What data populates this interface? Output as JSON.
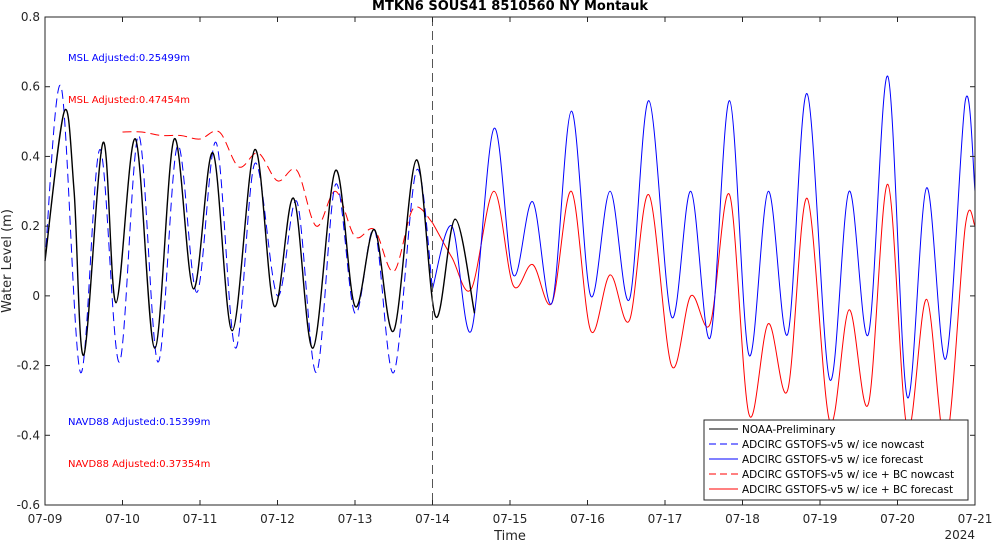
{
  "chart_data": {
    "type": "line",
    "title": "MTKN6 SOUS41 8510560 NY Montauk",
    "xlabel": "Time",
    "ylabel": "Water Level (m)",
    "x_range_days": [
      "2024-07-09",
      "2024-07-21"
    ],
    "x_ticks": [
      "07-09",
      "07-10",
      "07-11",
      "07-12",
      "07-13",
      "07-14",
      "07-15",
      "07-16",
      "07-17",
      "07-18",
      "07-19",
      "07-20",
      "07-21"
    ],
    "x_year_label": "2024",
    "ylim": [
      -0.6,
      0.8
    ],
    "y_ticks": [
      "-0.6",
      "-0.4",
      "-0.2",
      "0",
      "0.2",
      "0.4",
      "0.6",
      "0.8"
    ],
    "nowcast_forecast_boundary": "2024-07-14",
    "grid": false,
    "legend_position": "bottom-right",
    "annotations": [
      {
        "text": "MSL Adjusted:0.25499m",
        "color": "#0000ff"
      },
      {
        "text": "MSL Adjusted:0.47454m",
        "color": "#ff0000"
      },
      {
        "text": "NAVD88 Adjusted:0.15399m",
        "color": "#0000ff"
      },
      {
        "text": "NAVD88 Adjusted:0.37354m",
        "color": "#ff0000"
      }
    ],
    "series": [
      {
        "name": "NOAA-Preliminary",
        "color": "#000000",
        "style": "solid",
        "x": [
          "07-09 00:00",
          "07-09 06:00",
          "07-09 09:00",
          "07-09 12:00",
          "07-09 18:00",
          "07-09 22:00",
          "07-10 04:00",
          "07-10 10:00",
          "07-10 16:00",
          "07-10 22:00",
          "07-11 04:00",
          "07-11 10:00",
          "07-11 17:00",
          "07-11 23:00",
          "07-12 05:00",
          "07-12 11:00",
          "07-12 18:00",
          "07-13 00:00",
          "07-13 06:00",
          "07-13 12:00",
          "07-13 19:00",
          "07-14 01:00",
          "07-14 07:00",
          "07-14 13:00"
        ],
        "y": [
          0.1,
          0.53,
          0.3,
          -0.17,
          0.44,
          -0.02,
          0.45,
          -0.15,
          0.45,
          0.02,
          0.41,
          -0.1,
          0.42,
          -0.03,
          0.28,
          -0.15,
          0.36,
          -0.03,
          0.19,
          -0.1,
          0.39,
          -0.06,
          0.22,
          -0.05
        ]
      },
      {
        "name": "ADCIRC GSTOFS-v5 w/ ice nowcast",
        "color": "#0000ff",
        "style": "dashed",
        "x": [
          "07-09 00:00",
          "07-09 05:00",
          "07-09 11:00",
          "07-09 17:00",
          "07-09 23:00",
          "07-10 05:00",
          "07-10 11:00",
          "07-10 17:00",
          "07-10 23:00",
          "07-11 05:00",
          "07-11 11:00",
          "07-11 17:00",
          "07-12 00:00",
          "07-12 06:00",
          "07-12 12:00",
          "07-12 18:00",
          "07-13 00:00",
          "07-13 06:00",
          "07-13 12:00",
          "07-13 19:00",
          "07-14 00:00"
        ],
        "y": [
          0.1,
          0.6,
          -0.22,
          0.42,
          -0.19,
          0.46,
          -0.19,
          0.43,
          0.01,
          0.44,
          -0.15,
          0.38,
          0.0,
          0.27,
          -0.22,
          0.32,
          -0.05,
          0.19,
          -0.22,
          0.36,
          0.02
        ]
      },
      {
        "name": "ADCIRC GSTOFS-v5 w/ ice forecast",
        "color": "#0000ff",
        "style": "solid",
        "x": [
          "07-14 00:00",
          "07-14 06:00",
          "07-14 12:00",
          "07-14 19:00",
          "07-15 01:00",
          "07-15 07:00",
          "07-15 13:00",
          "07-15 19:00",
          "07-16 01:00",
          "07-16 07:00",
          "07-16 13:00",
          "07-16 19:00",
          "07-17 02:00",
          "07-17 08:00",
          "07-17 14:00",
          "07-17 20:00",
          "07-18 02:00",
          "07-18 08:00",
          "07-18 14:00",
          "07-18 20:00",
          "07-19 03:00",
          "07-19 09:00",
          "07-19 15:00",
          "07-19 21:00",
          "07-20 03:00",
          "07-20 09:00",
          "07-20 15:00",
          "07-20 21:00",
          "07-21 00:00"
        ],
        "y": [
          0.02,
          0.2,
          -0.1,
          0.48,
          0.06,
          0.27,
          -0.02,
          0.53,
          0.0,
          0.3,
          -0.01,
          0.56,
          -0.06,
          0.3,
          -0.12,
          0.56,
          -0.17,
          0.3,
          -0.11,
          0.58,
          -0.24,
          0.3,
          -0.11,
          0.63,
          -0.29,
          0.31,
          -0.18,
          0.56,
          0.3
        ]
      },
      {
        "name": "ADCIRC GSTOFS-v5 w/ ice + BC nowcast",
        "color": "#ff0000",
        "style": "dashed",
        "x": [
          "07-10 00:00",
          "07-10 06:00",
          "07-10 12:00",
          "07-10 18:00",
          "07-11 00:00",
          "07-11 06:00",
          "07-11 12:00",
          "07-11 18:00",
          "07-12 00:00",
          "07-12 06:00",
          "07-12 12:00",
          "07-12 18:00",
          "07-13 00:00",
          "07-13 06:00",
          "07-13 12:00",
          "07-13 18:00",
          "07-14 00:00"
        ],
        "y": [
          0.47,
          0.47,
          0.46,
          0.46,
          0.45,
          0.47,
          0.37,
          0.41,
          0.33,
          0.36,
          0.2,
          0.3,
          0.17,
          0.19,
          0.07,
          0.25,
          0.21
        ]
      },
      {
        "name": "ADCIRC GSTOFS-v5 w/ ice + BC forecast",
        "color": "#ff0000",
        "style": "solid",
        "x": [
          "07-14 00:00",
          "07-14 06:00",
          "07-14 12:00",
          "07-14 19:00",
          "07-15 01:00",
          "07-15 07:00",
          "07-15 13:00",
          "07-15 19:00",
          "07-16 01:00",
          "07-16 07:00",
          "07-16 13:00",
          "07-16 19:00",
          "07-17 02:00",
          "07-17 08:00",
          "07-17 14:00",
          "07-17 20:00",
          "07-18 02:00",
          "07-18 08:00",
          "07-18 14:00",
          "07-18 20:00",
          "07-19 03:00",
          "07-19 09:00",
          "07-19 15:00",
          "07-19 21:00",
          "07-20 03:00",
          "07-20 09:00",
          "07-20 15:00",
          "07-20 21:00",
          "07-21 00:00"
        ],
        "y": [
          0.21,
          0.11,
          0.02,
          0.3,
          0.03,
          0.09,
          -0.02,
          0.3,
          -0.1,
          0.06,
          -0.07,
          0.29,
          -0.2,
          0.0,
          -0.08,
          0.29,
          -0.34,
          -0.08,
          -0.27,
          0.28,
          -0.36,
          -0.04,
          -0.31,
          0.32,
          -0.38,
          -0.01,
          -0.42,
          0.2,
          0.2
        ]
      }
    ]
  }
}
